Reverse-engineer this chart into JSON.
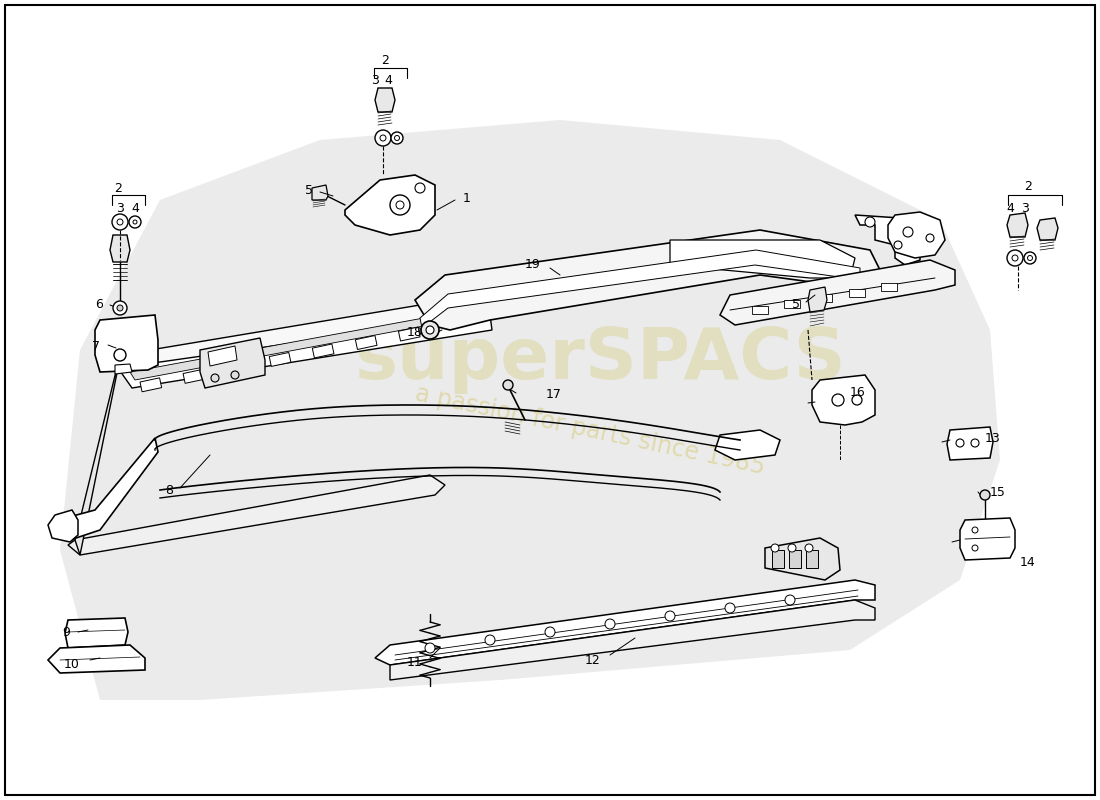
{
  "background_color": "#ffffff",
  "line_color": "#000000",
  "watermark1": "superSPACS",
  "watermark2": "a passion for parts since 1985",
  "watermark_color": "#d4c870",
  "fig_width": 11.0,
  "fig_height": 8.0,
  "dpi": 100
}
